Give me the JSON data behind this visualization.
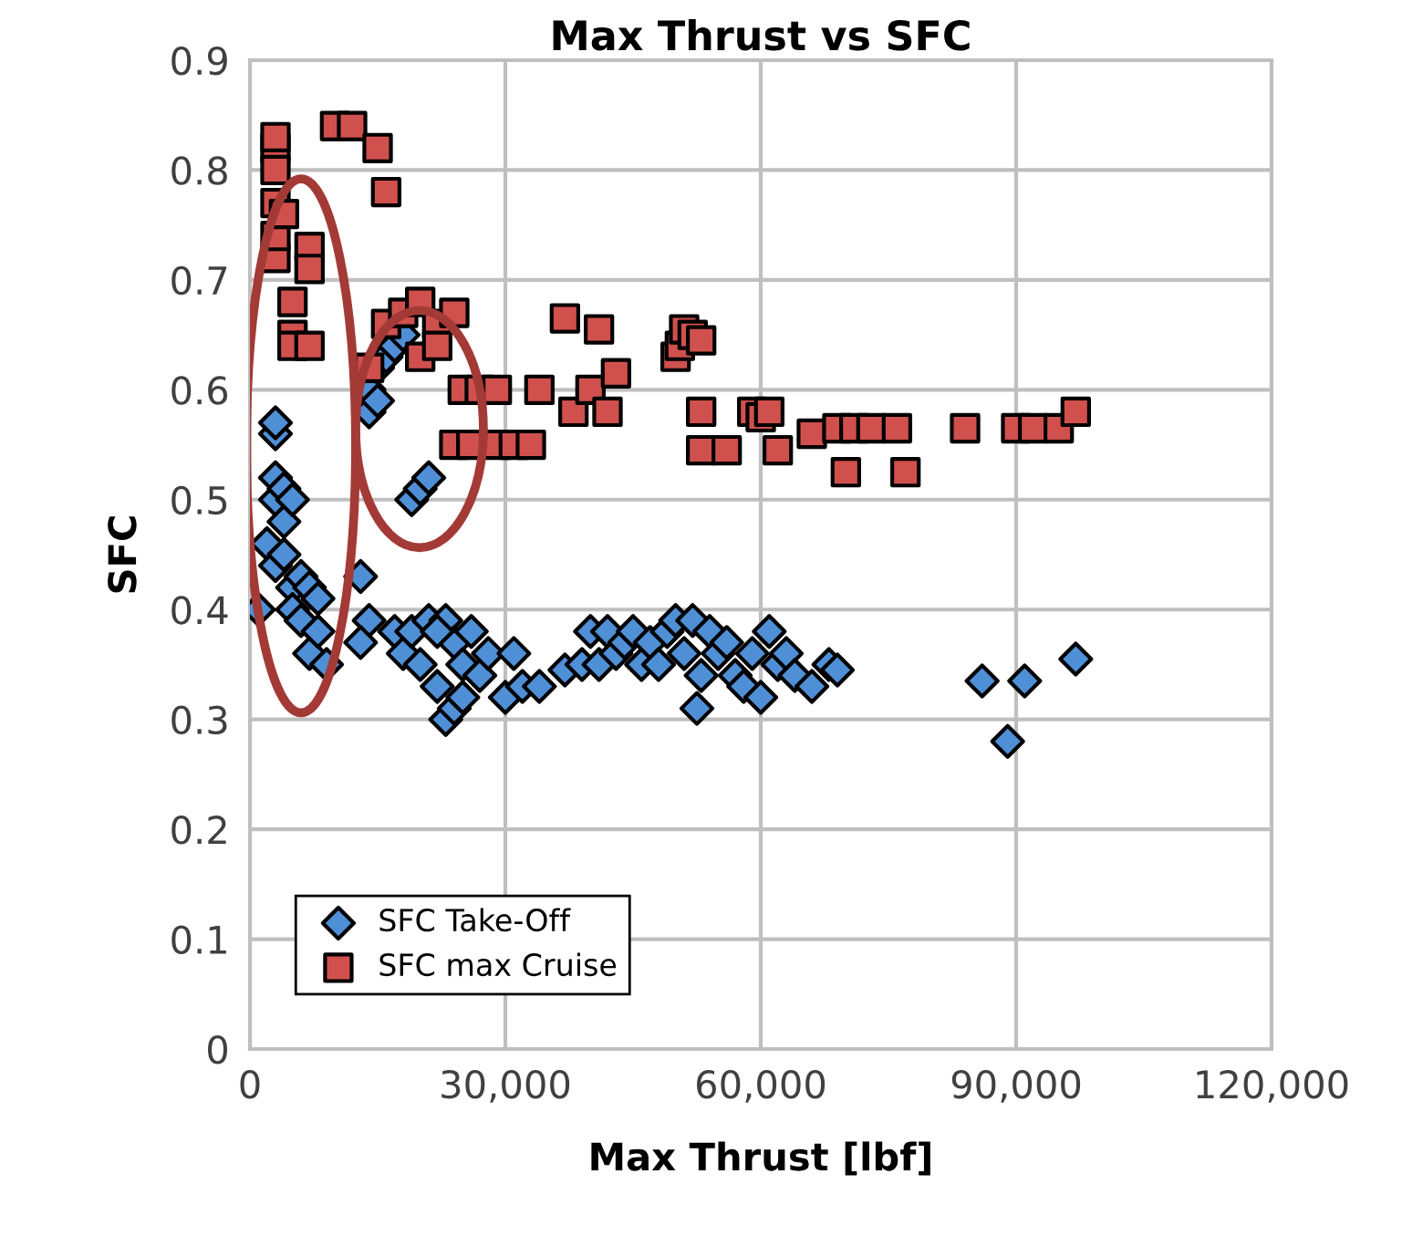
{
  "chart_data": {
    "type": "scatter",
    "title": "Max Thrust vs SFC",
    "xlabel": "Max Thrust [lbf]",
    "ylabel": "SFC",
    "xlim": [
      0,
      120000
    ],
    "xticks": [
      {
        "value": 0,
        "label": "0"
      },
      {
        "value": 30000,
        "label": "30,000"
      },
      {
        "value": 60000,
        "label": "60,000"
      },
      {
        "value": 90000,
        "label": "90,000"
      },
      {
        "value": 120000,
        "label": "120,000"
      }
    ],
    "ylim": [
      0,
      0.9
    ],
    "yticks": [
      0,
      0.1,
      0.2,
      0.3,
      0.4,
      0.5,
      0.6,
      0.7,
      0.8,
      0.9
    ],
    "grid": true,
    "legend": "bottom left",
    "series": [
      {
        "name": "SFC Take-Off",
        "color": "#4f8fd6",
        "marker": "diamond",
        "x": [
          1000,
          2000,
          3000,
          3000,
          3000,
          3000,
          4000,
          4000,
          3000,
          5000,
          5000,
          6000,
          6000,
          7000,
          8000,
          7000,
          9000,
          8000,
          4000,
          5000,
          13000,
          14000,
          13000,
          14000,
          15000,
          16000,
          17000,
          18000,
          14000,
          15000,
          19000,
          20000,
          21000,
          17000,
          18000,
          19000,
          20000,
          21000,
          22000,
          23000,
          24000,
          23000,
          24000,
          25000,
          26000,
          27000,
          28000,
          22000,
          25000,
          30000,
          31000,
          32000,
          34000,
          37000,
          39000,
          40000,
          41000,
          42000,
          43000,
          44000,
          45000,
          46000,
          47000,
          48000,
          49000,
          50000,
          51000,
          52000,
          52500,
          53000,
          54000,
          55000,
          56000,
          57000,
          58000,
          59000,
          60000,
          61000,
          62000,
          63000,
          64000,
          66000,
          68000,
          69000,
          86000,
          89000,
          91000,
          97000
        ],
        "values": [
          0.4,
          0.46,
          0.5,
          0.52,
          0.56,
          0.57,
          0.51,
          0.48,
          0.44,
          0.42,
          0.4,
          0.39,
          0.43,
          0.42,
          0.41,
          0.36,
          0.35,
          0.38,
          0.45,
          0.5,
          0.43,
          0.39,
          0.37,
          0.6,
          0.62,
          0.63,
          0.64,
          0.65,
          0.58,
          0.59,
          0.5,
          0.51,
          0.52,
          0.38,
          0.36,
          0.38,
          0.35,
          0.39,
          0.33,
          0.3,
          0.31,
          0.39,
          0.37,
          0.35,
          0.38,
          0.34,
          0.36,
          0.38,
          0.32,
          0.32,
          0.36,
          0.33,
          0.33,
          0.345,
          0.35,
          0.38,
          0.35,
          0.38,
          0.36,
          0.37,
          0.38,
          0.35,
          0.37,
          0.35,
          0.38,
          0.39,
          0.36,
          0.39,
          0.31,
          0.34,
          0.38,
          0.36,
          0.37,
          0.34,
          0.33,
          0.36,
          0.32,
          0.38,
          0.35,
          0.36,
          0.34,
          0.33,
          0.35,
          0.345,
          0.335,
          0.28,
          0.335,
          0.355
        ]
      },
      {
        "name": "SFC max Cruise",
        "color": "#d0504d",
        "marker": "square",
        "x": [
          3000,
          3000,
          3000,
          3000,
          3000,
          3000,
          4000,
          5000,
          5000,
          5000,
          7000,
          7000,
          7000,
          10000,
          12000,
          15000,
          16000,
          14000,
          16000,
          18000,
          20000,
          22000,
          24000,
          20000,
          22000,
          25000,
          27000,
          29000,
          24000,
          26000,
          29000,
          31000,
          33000,
          34000,
          37000,
          38000,
          40000,
          41000,
          42000,
          43000,
          50000,
          50500,
          51000,
          52000,
          53000,
          53000,
          53000,
          56000,
          59000,
          60000,
          61000,
          62000,
          66000,
          69000,
          71000,
          73000,
          76000,
          77000,
          70000,
          84000,
          90000,
          92000,
          95000,
          97000
        ],
        "values": [
          0.82,
          0.83,
          0.8,
          0.77,
          0.72,
          0.74,
          0.76,
          0.68,
          0.65,
          0.64,
          0.64,
          0.73,
          0.71,
          0.84,
          0.84,
          0.82,
          0.78,
          0.62,
          0.66,
          0.67,
          0.68,
          0.66,
          0.67,
          0.63,
          0.64,
          0.6,
          0.6,
          0.6,
          0.55,
          0.55,
          0.55,
          0.55,
          0.55,
          0.6,
          0.665,
          0.58,
          0.6,
          0.655,
          0.58,
          0.615,
          0.63,
          0.64,
          0.655,
          0.65,
          0.645,
          0.58,
          0.545,
          0.545,
          0.58,
          0.575,
          0.58,
          0.545,
          0.56,
          0.565,
          0.565,
          0.565,
          0.565,
          0.525,
          0.525,
          0.565,
          0.565,
          0.565,
          0.565,
          0.58
        ]
      }
    ]
  }
}
